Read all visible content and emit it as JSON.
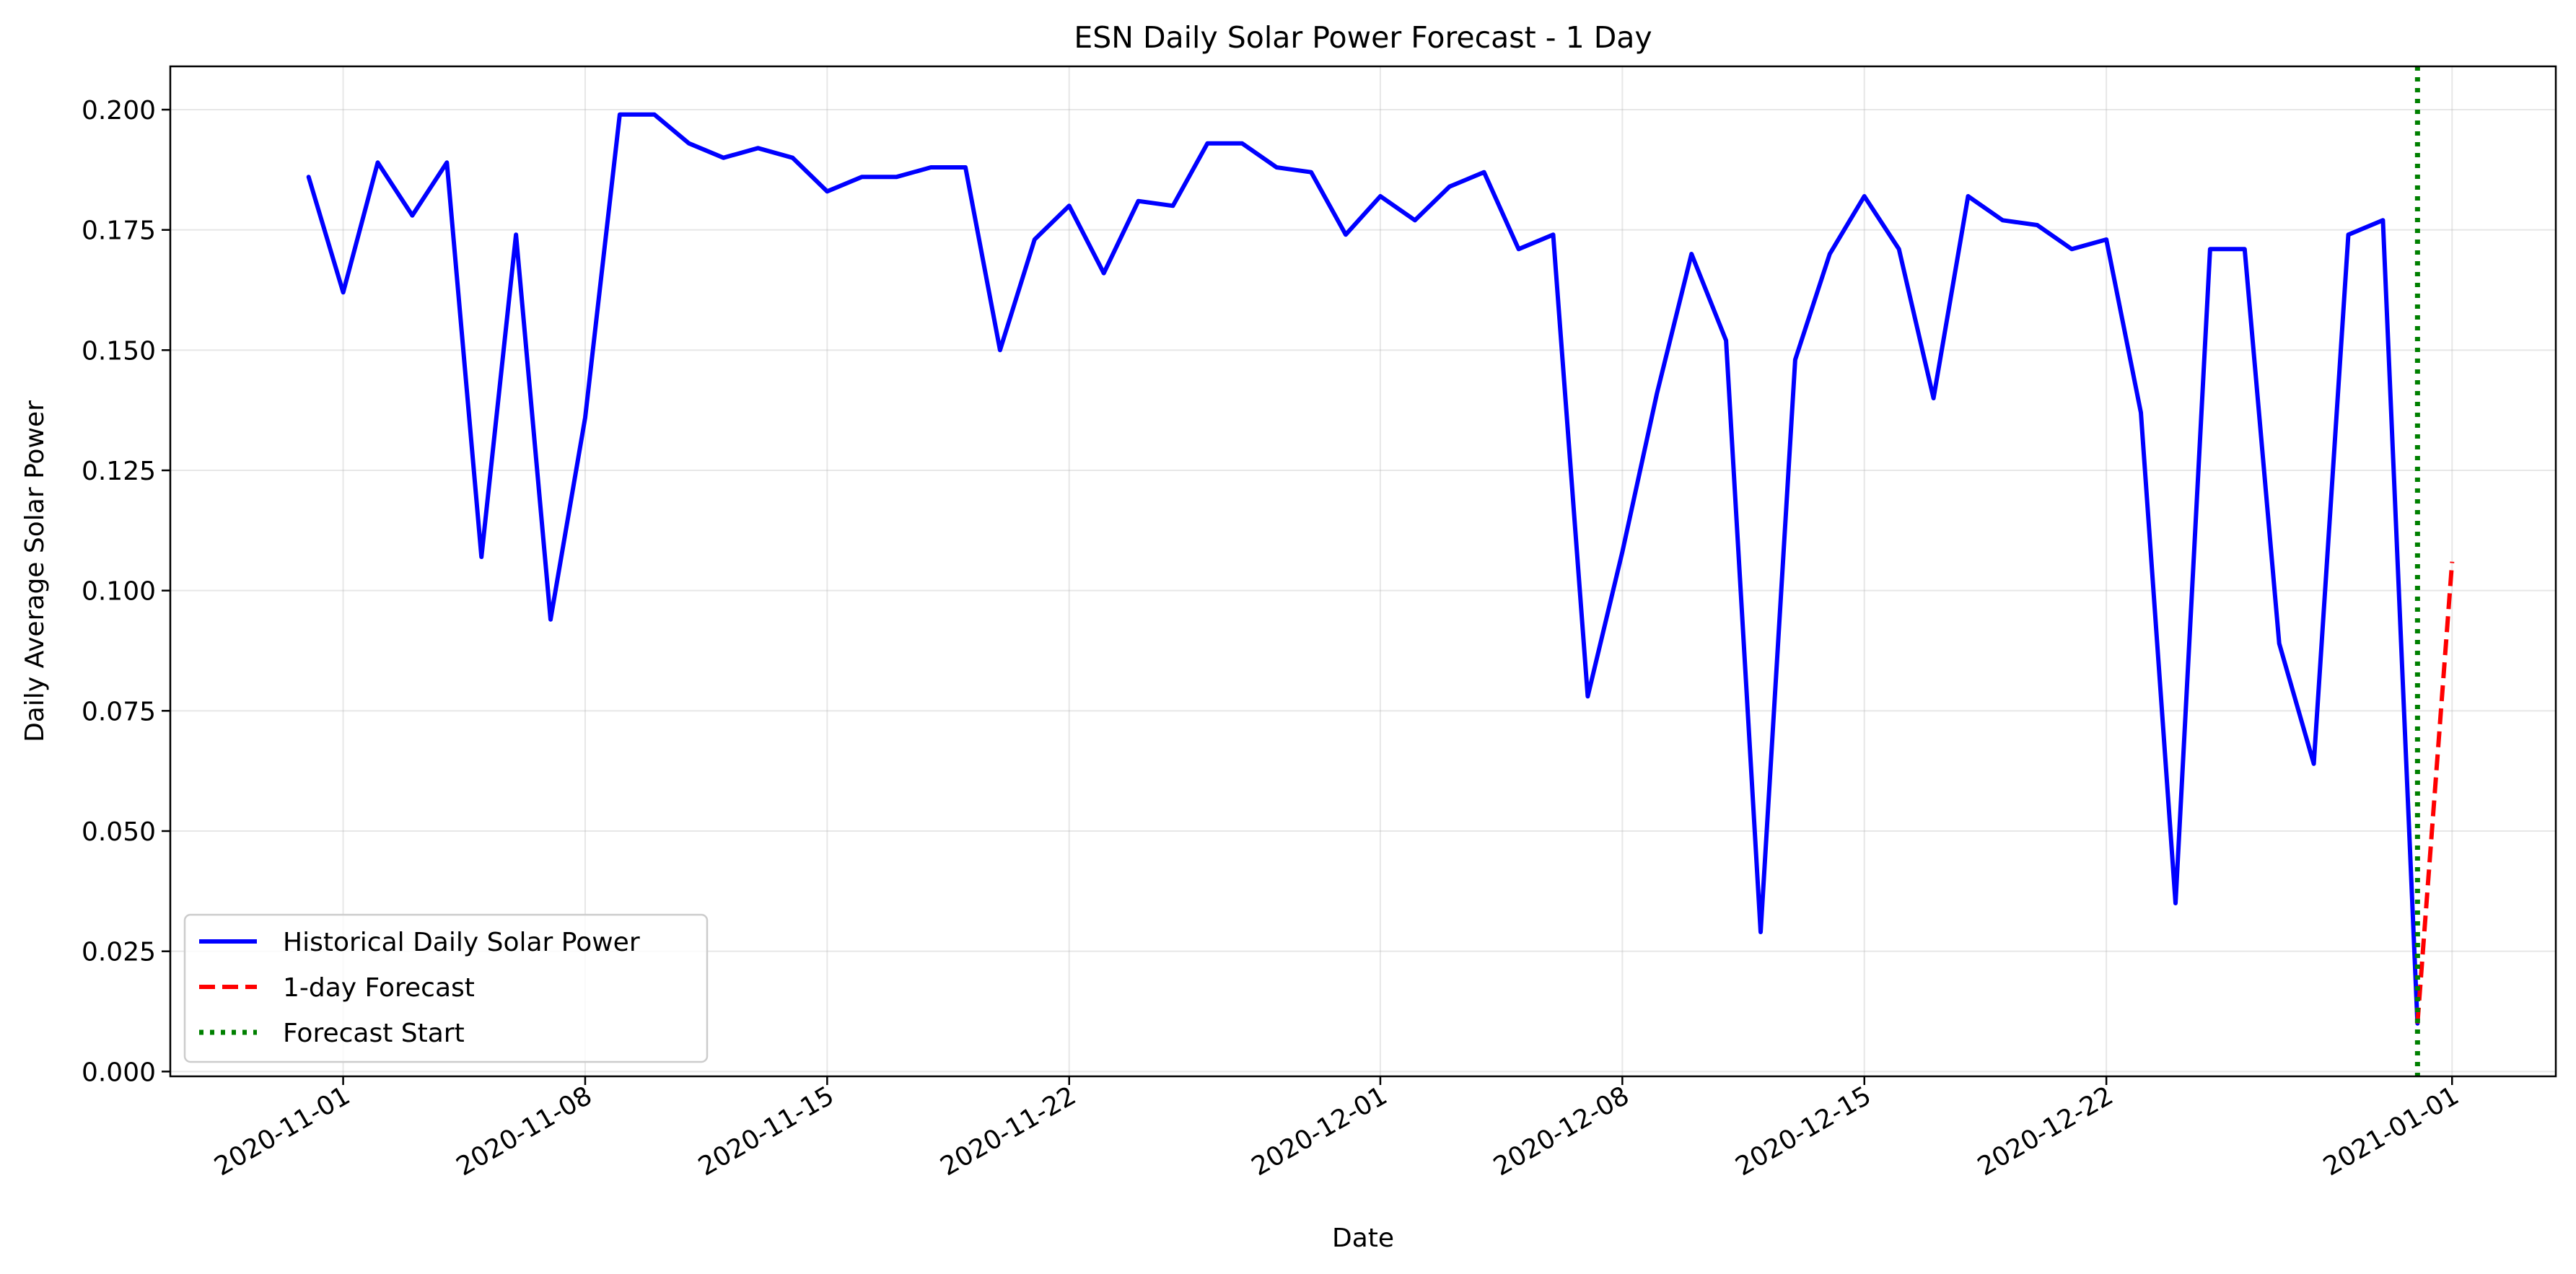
{
  "chart_data": {
    "type": "line",
    "title": "ESN Daily Solar Power Forecast - 1 Day",
    "xlabel": "Date",
    "ylabel": "Daily Average Solar Power",
    "x_tick_labels": [
      "2020-11-01",
      "2020-11-08",
      "2020-11-15",
      "2020-11-22",
      "2020-12-01",
      "2020-12-08",
      "2020-12-15",
      "2020-12-22",
      "2021-01-01"
    ],
    "y_tick_labels": [
      "0.000",
      "0.025",
      "0.050",
      "0.075",
      "0.100",
      "0.125",
      "0.150",
      "0.175",
      "0.200"
    ],
    "xlim": [
      "2020-10-27",
      "2021-01-04"
    ],
    "ylim": [
      -0.001,
      0.209
    ],
    "grid": true,
    "legend_position": "lower-left",
    "series": [
      {
        "name": "Historical Daily Solar Power",
        "color": "#0000ff",
        "style": "solid",
        "x": [
          "2020-10-31",
          "2020-11-01",
          "2020-11-02",
          "2020-11-03",
          "2020-11-04",
          "2020-11-05",
          "2020-11-06",
          "2020-11-07",
          "2020-11-08",
          "2020-11-09",
          "2020-11-10",
          "2020-11-11",
          "2020-11-12",
          "2020-11-13",
          "2020-11-14",
          "2020-11-15",
          "2020-11-16",
          "2020-11-17",
          "2020-11-18",
          "2020-11-19",
          "2020-11-20",
          "2020-11-21",
          "2020-11-22",
          "2020-11-23",
          "2020-11-24",
          "2020-11-25",
          "2020-11-26",
          "2020-11-27",
          "2020-11-28",
          "2020-11-29",
          "2020-11-30",
          "2020-12-01",
          "2020-12-02",
          "2020-12-03",
          "2020-12-04",
          "2020-12-05",
          "2020-12-06",
          "2020-12-07",
          "2020-12-08",
          "2020-12-09",
          "2020-12-10",
          "2020-12-11",
          "2020-12-12",
          "2020-12-13",
          "2020-12-14",
          "2020-12-15",
          "2020-12-16",
          "2020-12-17",
          "2020-12-18",
          "2020-12-19",
          "2020-12-20",
          "2020-12-21",
          "2020-12-22",
          "2020-12-23",
          "2020-12-24",
          "2020-12-25",
          "2020-12-26",
          "2020-12-27",
          "2020-12-28",
          "2020-12-29",
          "2020-12-30",
          "2020-12-31"
        ],
        "y": [
          0.186,
          0.162,
          0.189,
          0.178,
          0.189,
          0.107,
          0.174,
          0.094,
          0.136,
          0.199,
          0.199,
          0.193,
          0.19,
          0.192,
          0.19,
          0.183,
          0.186,
          0.186,
          0.188,
          0.188,
          0.15,
          0.173,
          0.18,
          0.166,
          0.181,
          0.18,
          0.193,
          0.193,
          0.188,
          0.187,
          0.174,
          0.182,
          0.177,
          0.184,
          0.187,
          0.171,
          0.174,
          0.078,
          0.108,
          0.141,
          0.17,
          0.152,
          0.029,
          0.148,
          0.17,
          0.182,
          0.171,
          0.14,
          0.182,
          0.177,
          0.176,
          0.171,
          0.173,
          0.137,
          0.035,
          0.171,
          0.171,
          0.089,
          0.064,
          0.174,
          0.177,
          0.01
        ]
      },
      {
        "name": "1-day Forecast",
        "color": "#ff0000",
        "style": "dashed",
        "x": [
          "2020-12-31",
          "2021-01-01"
        ],
        "y": [
          0.01,
          0.106
        ]
      },
      {
        "name": "Forecast Start",
        "color": "#008000",
        "style": "dotted",
        "vline_x": "2020-12-31"
      }
    ]
  }
}
